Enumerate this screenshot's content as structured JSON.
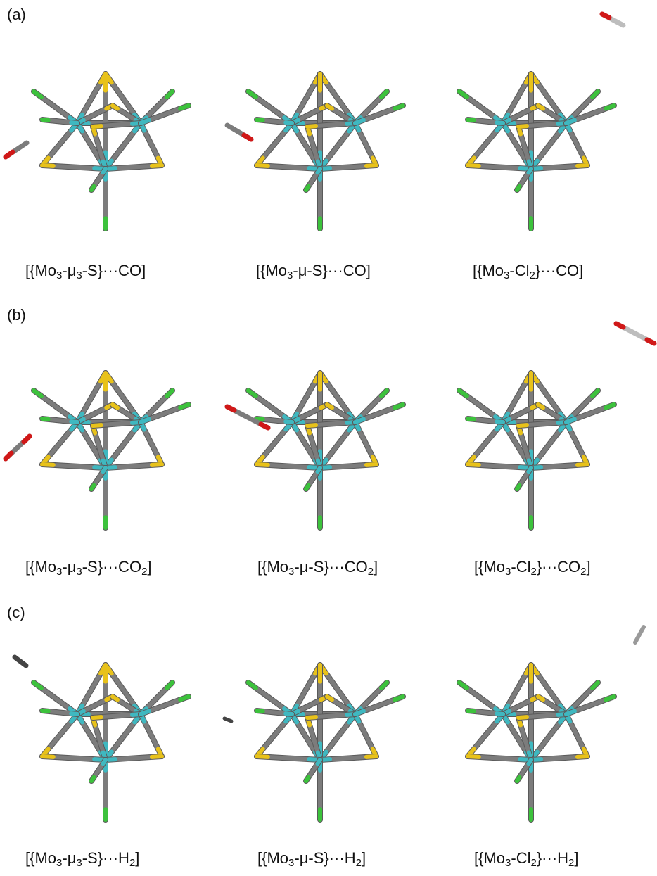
{
  "panels": [
    {
      "label": "(a)",
      "captions": [
        {
          "pre": "[{Mo",
          "s1": "3",
          "mid1": "-μ",
          "s2": "3",
          "mid2": "-S}···CO",
          "s3": "",
          "post": "]"
        },
        {
          "pre": "[{Mo",
          "s1": "3",
          "mid1": "-μ-S}···CO",
          "s2": "",
          "mid2": "",
          "s3": "",
          "post": "]"
        },
        {
          "pre": "[{Mo",
          "s1": "3",
          "mid1": "-Cl",
          "s2": "2",
          "mid2": "}···CO",
          "s3": "",
          "post": "]"
        }
      ]
    },
    {
      "label": "(b)",
      "captions": [
        {
          "pre": "[{Mo",
          "s1": "3",
          "mid1": "-μ",
          "s2": "3",
          "mid2": "-S}···CO",
          "s3": "2",
          "post": "]"
        },
        {
          "pre": "[{Mo",
          "s1": "3",
          "mid1": "-μ-S}···CO",
          "s2": "2",
          "mid2": "",
          "s3": "",
          "post": "]"
        },
        {
          "pre": "[{Mo",
          "s1": "3",
          "mid1": "-Cl",
          "s2": "2",
          "mid2": "}···CO",
          "s3": "2",
          "post": "]"
        }
      ]
    },
    {
      "label": "(c)",
      "captions": [
        {
          "pre": "[{Mo",
          "s1": "3",
          "mid1": "-μ",
          "s2": "3",
          "mid2": "-S}···H",
          "s3": "2",
          "post": "]"
        },
        {
          "pre": "[{Mo",
          "s1": "3",
          "mid1": "-μ-S}···H",
          "s2": "2",
          "mid2": "",
          "s3": "",
          "post": "]"
        },
        {
          "pre": "[{Mo",
          "s1": "3",
          "mid1": "-Cl",
          "s2": "2",
          "mid2": "}···H",
          "s3": "2",
          "post": "]"
        }
      ]
    }
  ],
  "colors": {
    "mo_atom": "#3fb8c0",
    "s_atom": "#e8c21a",
    "cl_atom": "#3cc23c",
    "o_atom": "#d01818",
    "c_bond": "#7c7c7c",
    "h_atom": "#d8d8d8",
    "text": "#111111"
  },
  "icons": {
    "molecule": "mo3-cluster-icon",
    "co": "co-molecule-icon",
    "co2": "co2-molecule-icon",
    "h2": "h2-molecule-icon"
  }
}
